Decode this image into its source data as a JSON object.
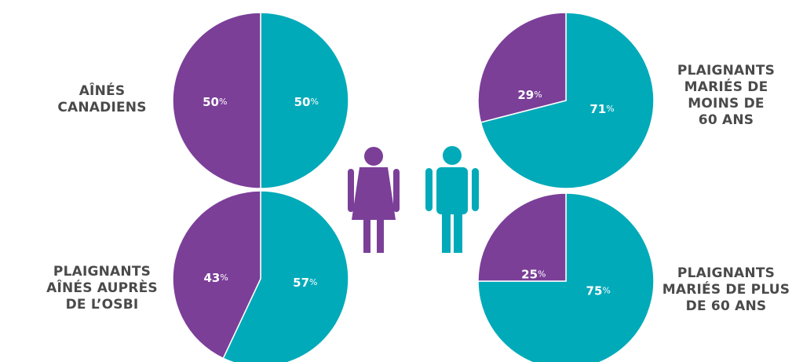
{
  "colors": {
    "women": "#7b3f98",
    "men": "#00aab9",
    "label_text": "#4a4a4a",
    "value_text": "#ffffff"
  },
  "legend_icons": [
    {
      "name": "woman-icon",
      "color": "#7b3f98"
    },
    {
      "name": "man-icon",
      "color": "#00aab9"
    }
  ],
  "chart_data": [
    {
      "type": "pie",
      "title_lines": [
        "AÎNÉS",
        "CANADIENS"
      ],
      "slices": [
        {
          "category": "women",
          "value": 50,
          "label": "50",
          "unit": "%"
        },
        {
          "category": "men",
          "value": 50,
          "label": "50",
          "unit": "%"
        }
      ]
    },
    {
      "type": "pie",
      "title_lines": [
        "PLAIGNANTS",
        "AÎNÉS AUPRÈS",
        "DE L’OSBI"
      ],
      "slices": [
        {
          "category": "women",
          "value": 43,
          "label": "43",
          "unit": "%"
        },
        {
          "category": "men",
          "value": 57,
          "label": "57",
          "unit": "%"
        }
      ]
    },
    {
      "type": "pie",
      "title_lines": [
        "PLAIGNANTS",
        "MARIÉS DE",
        "MOINS DE",
        "60 ANS"
      ],
      "slices": [
        {
          "category": "women",
          "value": 29,
          "label": "29",
          "unit": "%"
        },
        {
          "category": "men",
          "value": 71,
          "label": "71",
          "unit": "%"
        }
      ]
    },
    {
      "type": "pie",
      "title_lines": [
        "PLAIGNANTS",
        "MARIÉS DE PLUS",
        "DE 60 ANS"
      ],
      "slices": [
        {
          "category": "women",
          "value": 25,
          "label": "25",
          "unit": "%"
        },
        {
          "category": "men",
          "value": 75,
          "label": "75",
          "unit": "%"
        }
      ]
    }
  ]
}
